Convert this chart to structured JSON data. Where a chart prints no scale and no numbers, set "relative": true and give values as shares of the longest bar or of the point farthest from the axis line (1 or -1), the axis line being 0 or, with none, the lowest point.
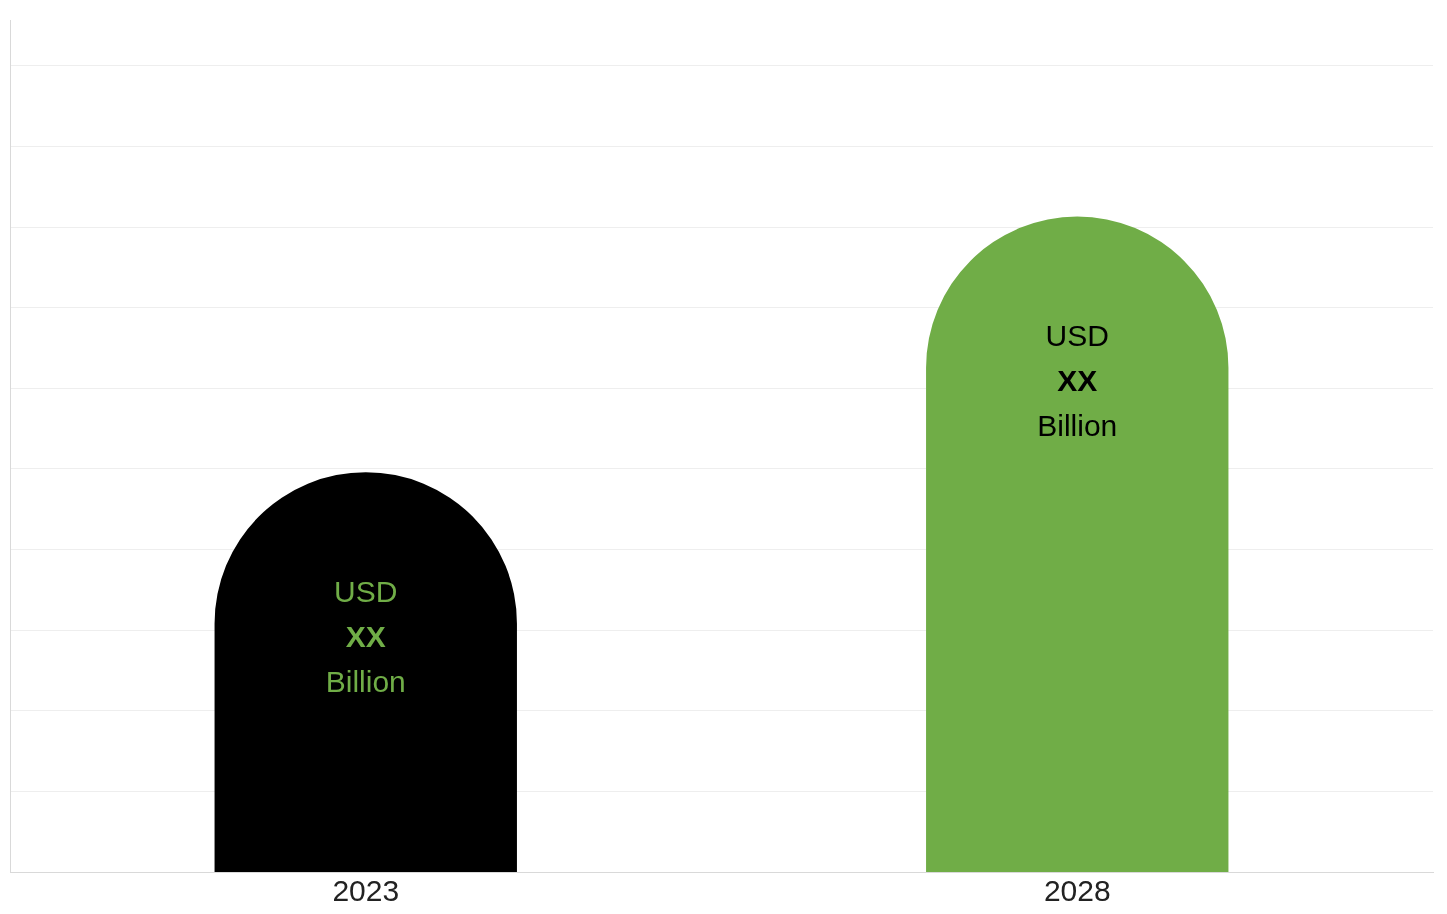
{
  "chart_data": {
    "type": "bar",
    "relative": true,
    "categories": [
      "2023",
      "2028"
    ],
    "values": [
      0.61,
      1
    ],
    "colors": [
      "#000000",
      "#70ad47"
    ],
    "annotations": [
      "USD\nXX\nBillion",
      "USD\nXX\nBillion"
    ],
    "grid": "y"
  }
}
